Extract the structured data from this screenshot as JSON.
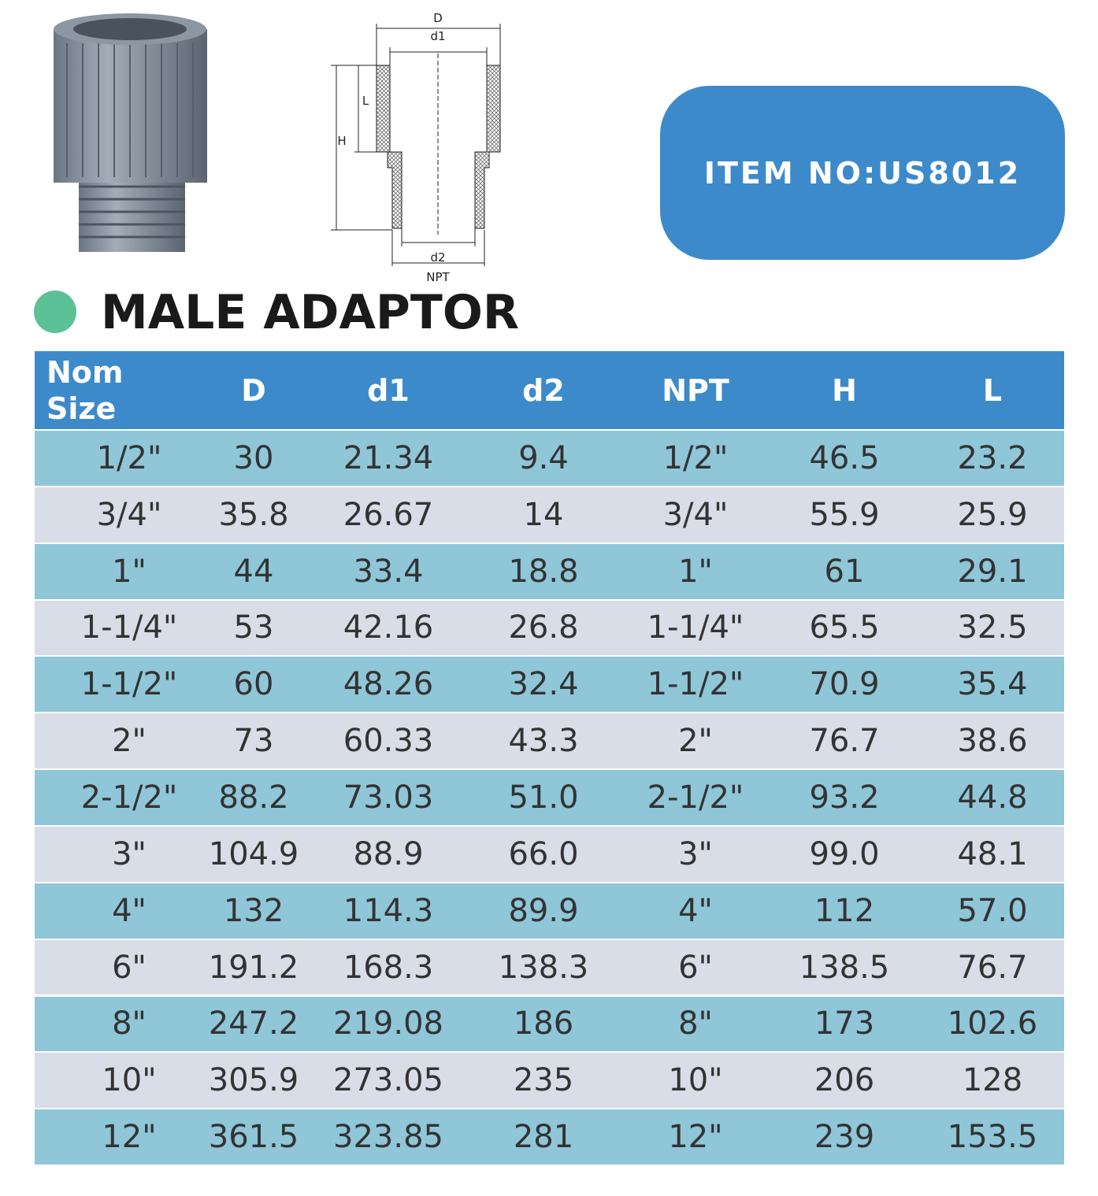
{
  "header": {
    "item_no": "ITEM NO:US8012",
    "title": "MALE ADAPTOR"
  },
  "diagram": {
    "labels": {
      "D": "D",
      "d1": "d1",
      "L": "L",
      "H": "H",
      "d2": "d2",
      "NPT": "NPT"
    }
  },
  "table": {
    "columns": [
      "Nom Size",
      "D",
      "d1",
      "d2",
      "NPT",
      "H",
      "L"
    ],
    "rows": [
      [
        "1/2\"",
        "30",
        "21.34",
        "9.4",
        "1/2\"",
        "46.5",
        "23.2"
      ],
      [
        "3/4\"",
        "35.8",
        "26.67",
        "14",
        "3/4\"",
        "55.9",
        "25.9"
      ],
      [
        "1\"",
        "44",
        "33.4",
        "18.8",
        "1\"",
        "61",
        "29.1"
      ],
      [
        "1-1/4\"",
        "53",
        "42.16",
        "26.8",
        "1-1/4\"",
        "65.5",
        "32.5"
      ],
      [
        "1-1/2\"",
        "60",
        "48.26",
        "32.4",
        "1-1/2\"",
        "70.9",
        "35.4"
      ],
      [
        "2\"",
        "73",
        "60.33",
        "43.3",
        "2\"",
        "76.7",
        "38.6"
      ],
      [
        "2-1/2\"",
        "88.2",
        "73.03",
        "51.0",
        "2-1/2\"",
        "93.2",
        "44.8"
      ],
      [
        "3\"",
        "104.9",
        "88.9",
        "66.0",
        "3\"",
        "99.0",
        "48.1"
      ],
      [
        "4\"",
        "132",
        "114.3",
        "89.9",
        "4\"",
        "112",
        "57.0"
      ],
      [
        "6\"",
        "191.2",
        "168.3",
        "138.3",
        "6\"",
        "138.5",
        "76.7"
      ],
      [
        "8\"",
        "247.2",
        "219.08",
        "186",
        "8\"",
        "173",
        "102.6"
      ],
      [
        "10\"",
        "305.9",
        "273.05",
        "235",
        "10\"",
        "206",
        "128"
      ],
      [
        "12\"",
        "361.5",
        "323.85",
        "281",
        "12\"",
        "239",
        "153.5"
      ]
    ]
  }
}
